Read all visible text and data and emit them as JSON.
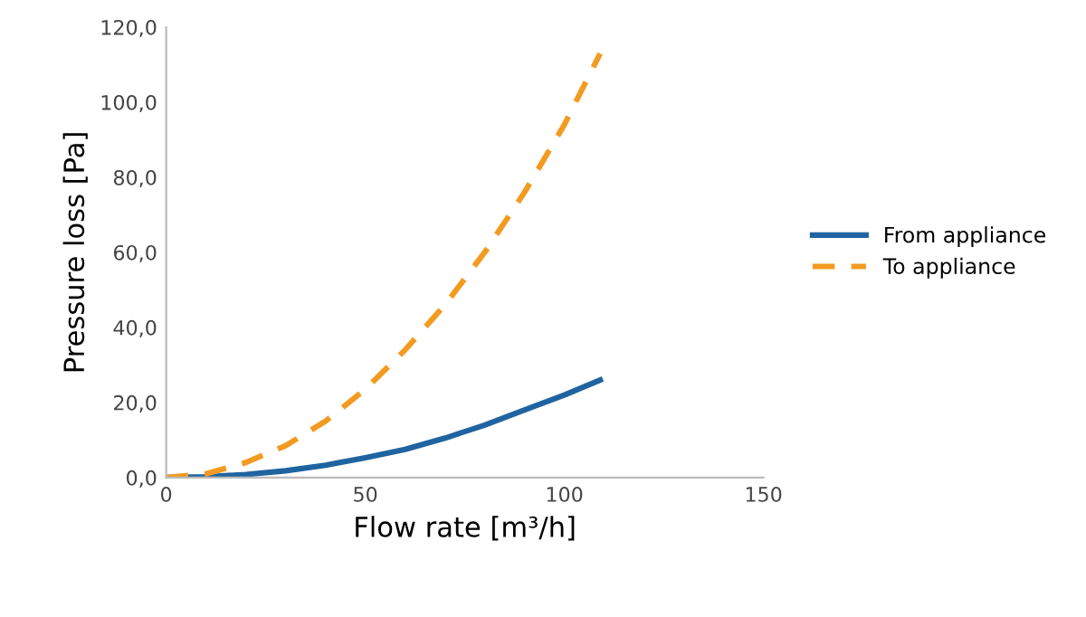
{
  "chart_data": {
    "type": "line",
    "xlabel": "Flow rate [m³/h]",
    "ylabel": "Pressure loss [Pa]",
    "x": [
      0,
      10,
      20,
      30,
      40,
      50,
      60,
      70,
      80,
      90,
      100,
      109
    ],
    "series": [
      {
        "name": "From appliance",
        "color": "#1f64a0",
        "line_style": "solid",
        "values": [
          0,
          0.2,
          0.8,
          1.8,
          3.3,
          5.3,
          7.5,
          10.5,
          14,
          18,
          22,
          26
        ]
      },
      {
        "name": "To appliance",
        "color": "#f39a21",
        "line_style": "dashed",
        "values": [
          0,
          1,
          4,
          8.5,
          15,
          23.5,
          34,
          46,
          60,
          76,
          94,
          113
        ]
      }
    ],
    "xlim": [
      0,
      150
    ],
    "xticks": [
      0,
      50,
      100,
      150
    ],
    "ylim": [
      0,
      120
    ],
    "yticks": [
      {
        "value": 0,
        "label": "0,0"
      },
      {
        "value": 20,
        "label": "20,0"
      },
      {
        "value": 40,
        "label": "40,0"
      },
      {
        "value": 60,
        "label": "60,0"
      },
      {
        "value": 80,
        "label": "80,0"
      },
      {
        "value": 100,
        "label": "100,0"
      },
      {
        "value": 120,
        "label": "120,0"
      }
    ],
    "grid": false,
    "legend": "right",
    "marker": "none"
  }
}
